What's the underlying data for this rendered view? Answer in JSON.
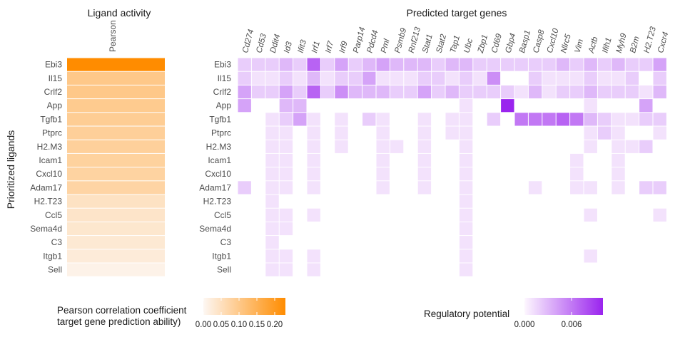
{
  "chart_data": [
    {
      "type": "heatmap",
      "title": "Ligand activity",
      "column_label": "Pearson",
      "ylabel": "Prioritized ligands",
      "ligands": [
        "Ebi3",
        "Il15",
        "Crlf2",
        "App",
        "Tgfb1",
        "Ptprc",
        "H2.M3",
        "Icam1",
        "Cxcl10",
        "Adam17",
        "H2.T23",
        "Ccl5",
        "Sema4d",
        "C3",
        "Itgb1",
        "Sell"
      ],
      "values": [
        0.23,
        0.1,
        0.1,
        0.095,
        0.09,
        0.085,
        0.083,
        0.08,
        0.078,
        0.075,
        0.045,
        0.04,
        0.035,
        0.03,
        0.025,
        0.01
      ],
      "legend": {
        "title_line1": "Pearson correlation coefficient",
        "title_line2": "target gene prediction ability)",
        "tick_labels": [
          "0.00",
          "0.05",
          "0.10",
          "0.15",
          "0.20"
        ],
        "ticks": [
          0,
          0.05,
          0.1,
          0.15,
          0.2
        ],
        "range": [
          0,
          0.23
        ],
        "color_low": "#fdf7f3",
        "color_high": "#ff8c00"
      }
    },
    {
      "type": "heatmap",
      "title": "Predicted target genes",
      "genes": [
        "Cd274",
        "Cd53",
        "Ddit4",
        "Id3",
        "Ifit3",
        "Irf1",
        "Irf7",
        "Irf9",
        "Parp14",
        "Pdcd4",
        "Pml",
        "Psmb9",
        "Rnf213",
        "Stat1",
        "Stat2",
        "Tap1",
        "Ubc",
        "Zbp1",
        "Cd69",
        "Gbp4",
        "Basp1",
        "Casp8",
        "Cxcl10",
        "Nlrc5",
        "Vim",
        "Actb",
        "Ifih1",
        "Myh9",
        "B2m",
        "H2.T23",
        "Cxcr4"
      ],
      "ligands": [
        "Ebi3",
        "Il15",
        "Crlf2",
        "App",
        "Tgfb1",
        "Ptprc",
        "H2.M3",
        "Icam1",
        "Cxcl10",
        "Adam17",
        "H2.T23",
        "Ccl5",
        "Sema4d",
        "C3",
        "Itgb1",
        "Sell"
      ],
      "matrix": [
        [
          0.002,
          0.002,
          0.002,
          0.003,
          0.002,
          0.007,
          0.002,
          0.004,
          0.002,
          0.003,
          0.004,
          0.003,
          0.003,
          0.003,
          0.002,
          0.003,
          0.003,
          0.002,
          0.002,
          0.002,
          0.002,
          0.002,
          0.002,
          0.003,
          0.002,
          0.003,
          0.002,
          0.003,
          0.002,
          0.002,
          0.004
        ],
        [
          0.002,
          0.001,
          0.001,
          0.002,
          0.001,
          0.003,
          0.001,
          0.002,
          0.002,
          0.004,
          0.001,
          0.001,
          0.001,
          0.002,
          0.002,
          0.001,
          0.002,
          0.001,
          0.005,
          0,
          0,
          0.002,
          0.001,
          0.001,
          0.001,
          0.002,
          0.001,
          0.001,
          0.002,
          0,
          0.002
        ],
        [
          0.004,
          0.002,
          0.002,
          0.004,
          0.002,
          0.007,
          0.002,
          0.005,
          0.003,
          0.003,
          0.003,
          0.002,
          0.002,
          0.004,
          0.002,
          0.003,
          0.002,
          0.002,
          0.002,
          0.002,
          0.001,
          0.003,
          0.001,
          0.002,
          0.002,
          0.003,
          0.002,
          0.002,
          0.002,
          0.001,
          0.003
        ],
        [
          0.004,
          0,
          0,
          0.003,
          0.003,
          0,
          0,
          0,
          0,
          0,
          0,
          0,
          0,
          0,
          0,
          0,
          0.001,
          0,
          0,
          0.01,
          0,
          0,
          0,
          0,
          0,
          0.001,
          0,
          0,
          0,
          0.004,
          0
        ],
        [
          0,
          0,
          0.001,
          0.002,
          0.004,
          0.001,
          0,
          0.001,
          0,
          0.002,
          0.001,
          0,
          0,
          0.001,
          0,
          0.001,
          0.001,
          0,
          0.002,
          0,
          0.006,
          0.006,
          0.006,
          0.007,
          0.006,
          0.003,
          0.002,
          0.001,
          0.001,
          0.002,
          0.002
        ],
        [
          0,
          0,
          0.001,
          0.001,
          0,
          0.001,
          0,
          0.001,
          0,
          0,
          0.001,
          0,
          0,
          0.001,
          0,
          0.001,
          0.001,
          0,
          0,
          0,
          0,
          0,
          0,
          0,
          0,
          0.001,
          0.002,
          0.001,
          0,
          0,
          0.001
        ],
        [
          0,
          0,
          0.001,
          0.001,
          0,
          0.001,
          0,
          0.001,
          0,
          0,
          0.001,
          0.001,
          0,
          0.001,
          0,
          0,
          0.001,
          0,
          0,
          0,
          0,
          0,
          0,
          0,
          0,
          0.001,
          0,
          0.001,
          0.001,
          0.002,
          0
        ],
        [
          0,
          0,
          0.001,
          0.001,
          0,
          0.001,
          0,
          0,
          0,
          0,
          0.001,
          0,
          0,
          0.001,
          0,
          0,
          0.001,
          0,
          0,
          0,
          0,
          0,
          0,
          0,
          0.001,
          0,
          0,
          0.001,
          0,
          0,
          0
        ],
        [
          0,
          0,
          0.001,
          0.001,
          0,
          0.001,
          0,
          0,
          0,
          0,
          0.001,
          0,
          0,
          0.001,
          0,
          0,
          0.001,
          0,
          0,
          0,
          0,
          0,
          0,
          0,
          0.001,
          0,
          0,
          0.001,
          0,
          0,
          0
        ],
        [
          0.002,
          0,
          0.001,
          0.001,
          0,
          0.001,
          0,
          0,
          0,
          0,
          0.001,
          0,
          0,
          0.001,
          0,
          0,
          0.001,
          0,
          0,
          0,
          0,
          0.001,
          0,
          0,
          0.001,
          0.001,
          0,
          0.001,
          0,
          0.002,
          0.002
        ],
        [
          0,
          0,
          0.001,
          0,
          0,
          0,
          0,
          0,
          0,
          0,
          0,
          0,
          0,
          0,
          0,
          0,
          0.001,
          0,
          0,
          0,
          0,
          0,
          0,
          0,
          0,
          0,
          0,
          0,
          0,
          0,
          0
        ],
        [
          0,
          0,
          0.001,
          0.001,
          0,
          0.001,
          0,
          0,
          0,
          0,
          0,
          0,
          0,
          0,
          0,
          0,
          0.001,
          0,
          0,
          0,
          0,
          0,
          0,
          0,
          0,
          0.001,
          0,
          0,
          0,
          0,
          0.001
        ],
        [
          0,
          0,
          0.001,
          0.001,
          0,
          0,
          0,
          0,
          0,
          0,
          0,
          0,
          0,
          0,
          0,
          0,
          0.001,
          0,
          0,
          0,
          0,
          0,
          0,
          0,
          0,
          0,
          0,
          0,
          0,
          0,
          0
        ],
        [
          0,
          0,
          0.001,
          0,
          0,
          0,
          0,
          0,
          0,
          0,
          0,
          0,
          0,
          0,
          0,
          0,
          0.001,
          0,
          0,
          0,
          0,
          0,
          0,
          0,
          0,
          0,
          0,
          0,
          0,
          0,
          0
        ],
        [
          0,
          0,
          0.001,
          0.001,
          0,
          0.001,
          0,
          0,
          0,
          0,
          0,
          0,
          0,
          0,
          0,
          0,
          0.001,
          0,
          0,
          0,
          0,
          0,
          0,
          0,
          0,
          0.001,
          0,
          0,
          0,
          0,
          0
        ],
        [
          0,
          0,
          0.001,
          0.001,
          0,
          0.001,
          0,
          0,
          0,
          0,
          0,
          0,
          0,
          0,
          0,
          0,
          0.001,
          0,
          0,
          0,
          0,
          0,
          0,
          0,
          0,
          0,
          0,
          0,
          0,
          0,
          0
        ]
      ],
      "legend": {
        "title": "Regulatory potential",
        "tick_labels": [
          "0.000",
          "0.006"
        ],
        "ticks": [
          0,
          0.006
        ],
        "range": [
          0,
          0.01
        ],
        "color_low": "#fdf7fe",
        "color_high": "#9a24ee"
      }
    }
  ]
}
